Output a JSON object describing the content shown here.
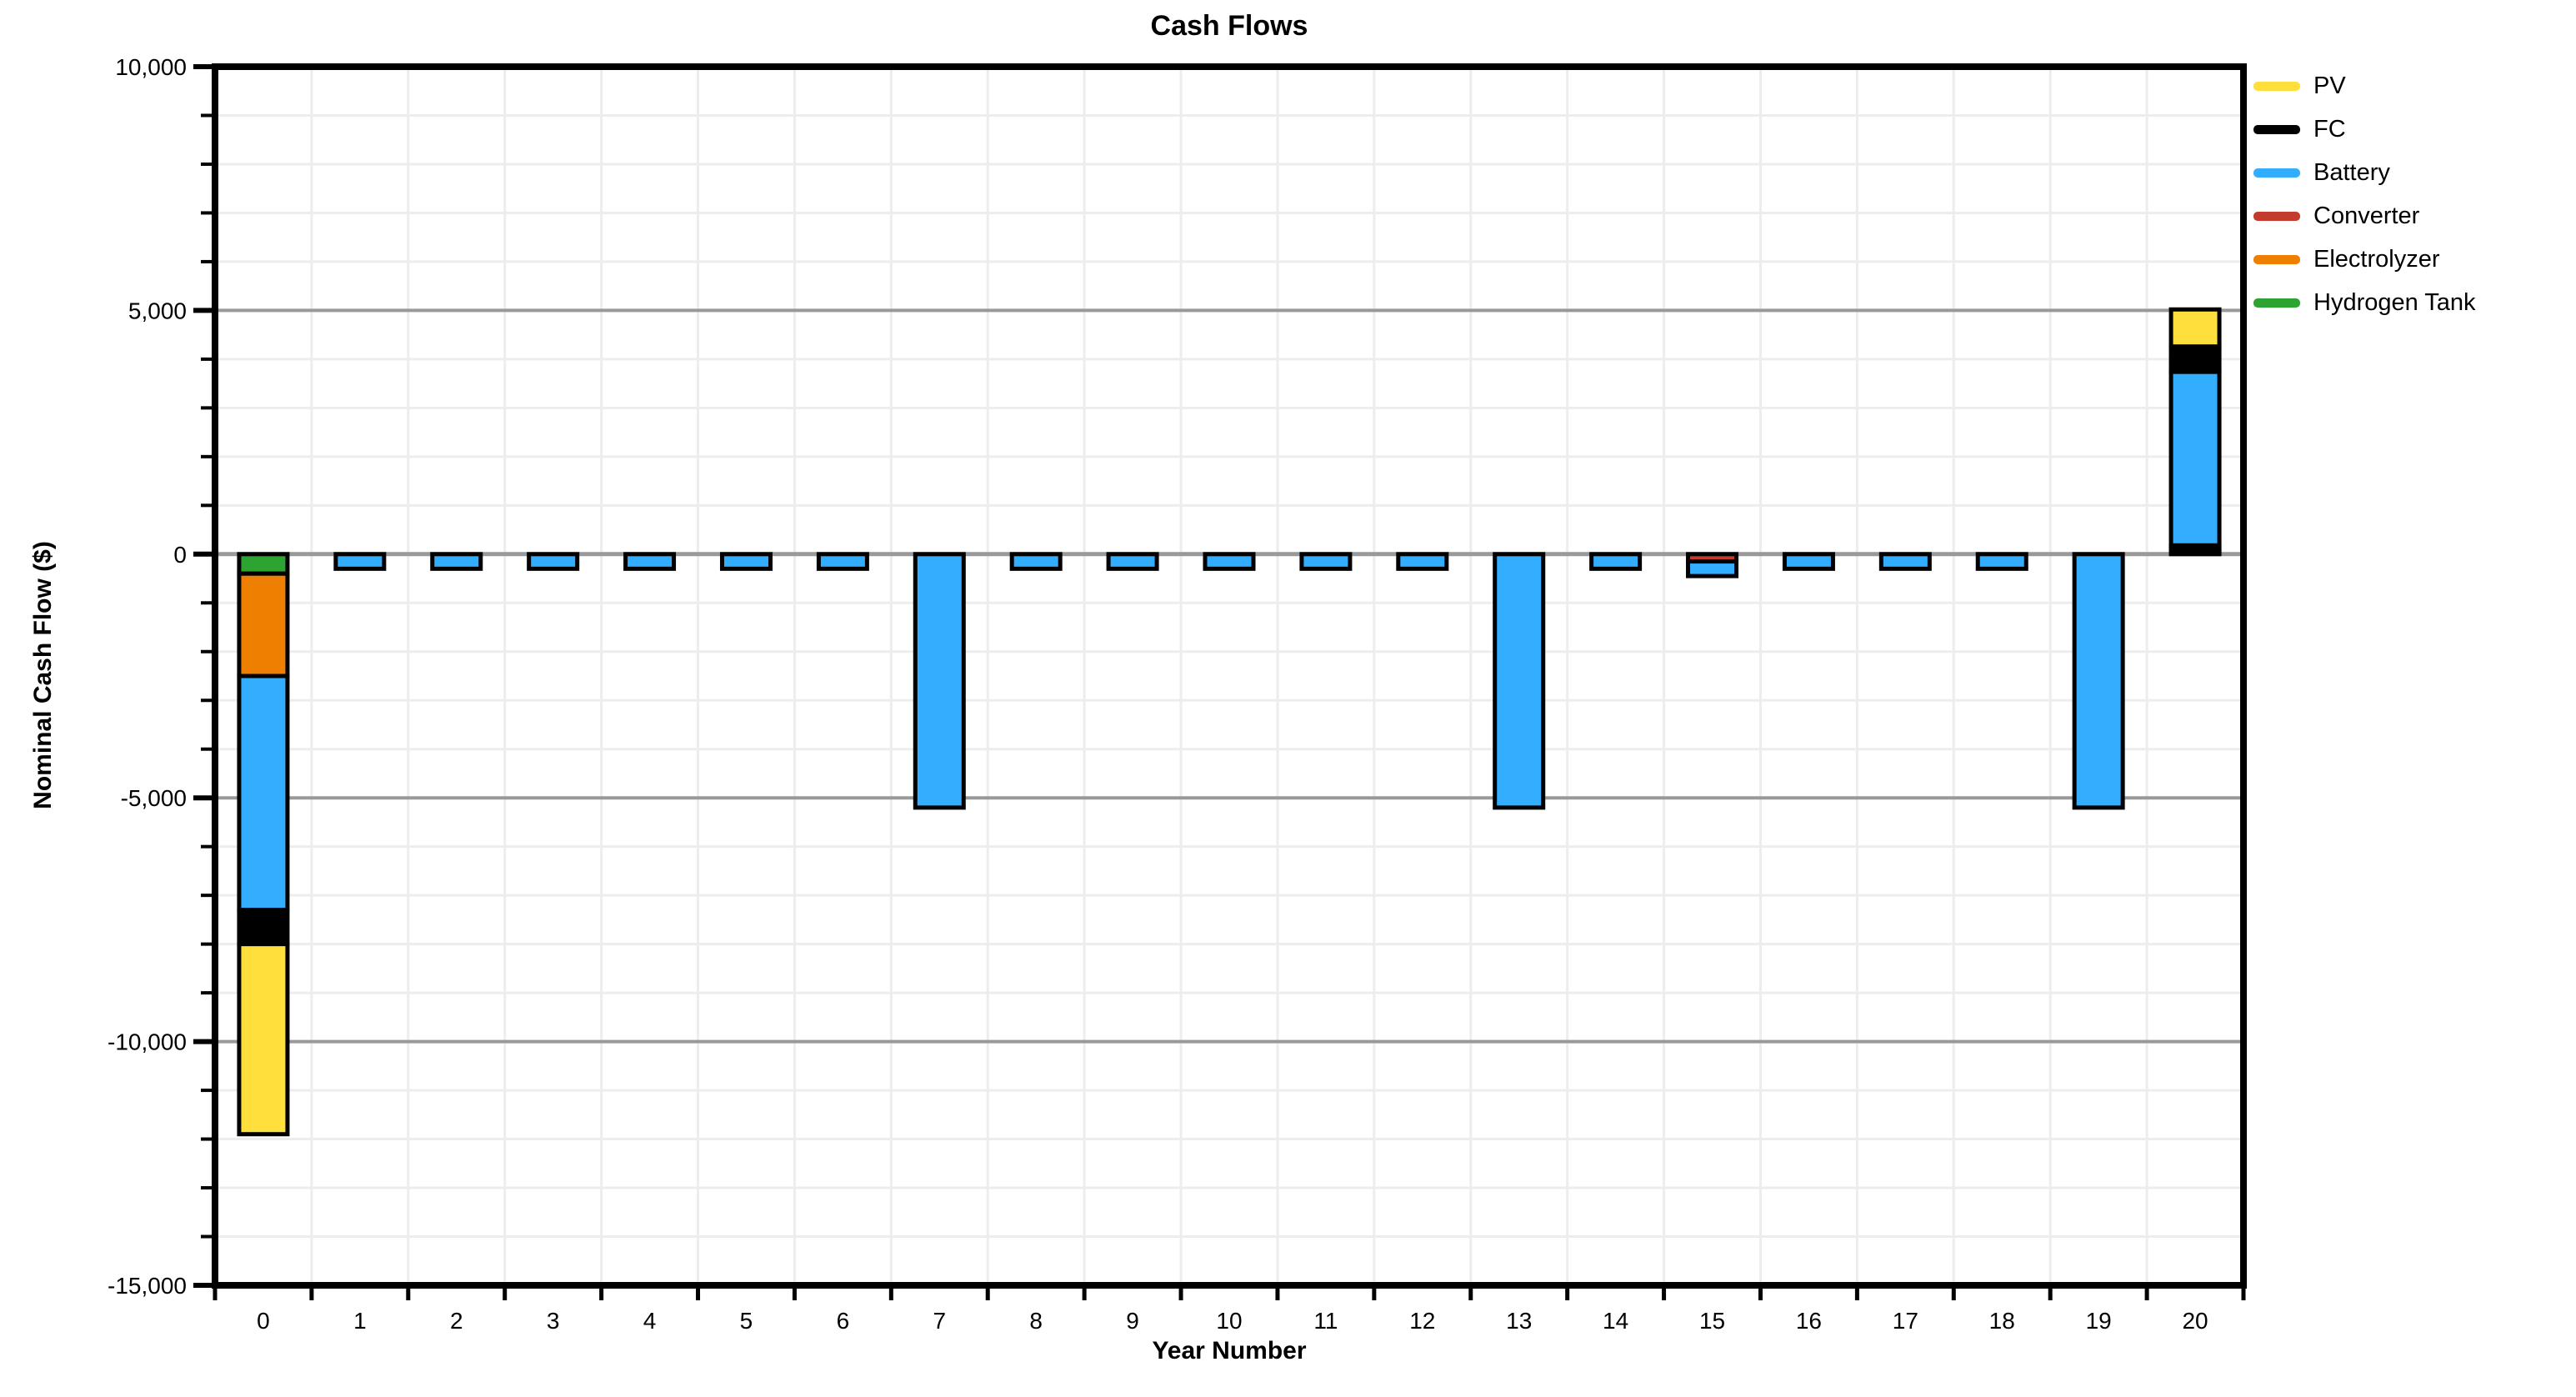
{
  "chart_data": {
    "type": "bar",
    "subtype": "stacked-bar",
    "title": "Cash Flows",
    "xlabel": "Year Number",
    "ylabel": "Nominal Cash Flow ($)",
    "ylim": [
      -15000,
      10000
    ],
    "ytick_major_step": 5000,
    "ytick_minor_step": 1000,
    "ytick_labels": [
      "10,000",
      "5,000",
      "0",
      "-5,000",
      "-10,000",
      "-15,000"
    ],
    "grid": "on",
    "legend_position": "outside-right",
    "stack_order": "reverse-legend-from-zero",
    "categories": [
      "0",
      "1",
      "2",
      "3",
      "4",
      "5",
      "6",
      "7",
      "8",
      "9",
      "10",
      "11",
      "12",
      "13",
      "14",
      "15",
      "16",
      "17",
      "18",
      "19",
      "20"
    ],
    "series": [
      {
        "name": "PV",
        "color": "#FFDF3B",
        "values": [
          -3900,
          0,
          0,
          0,
          0,
          0,
          0,
          0,
          0,
          0,
          0,
          0,
          0,
          0,
          0,
          0,
          0,
          0,
          0,
          0,
          760
        ]
      },
      {
        "name": "FC",
        "color": "#000000",
        "values": [
          -700,
          0,
          0,
          0,
          0,
          0,
          0,
          0,
          0,
          0,
          0,
          0,
          0,
          0,
          0,
          0,
          0,
          0,
          0,
          0,
          520
        ]
      },
      {
        "name": "Battery",
        "color": "#33AEFF",
        "values": [
          -4800,
          -300,
          -300,
          -300,
          -300,
          -300,
          -300,
          -5200,
          -300,
          -300,
          -300,
          -300,
          -300,
          -5200,
          -300,
          -300,
          -300,
          -300,
          -300,
          -5200,
          3560
        ]
      },
      {
        "name": "Converter",
        "color": "#C23B2C",
        "values": [
          0,
          0,
          0,
          0,
          0,
          0,
          0,
          0,
          0,
          0,
          0,
          0,
          0,
          0,
          0,
          -150,
          0,
          0,
          0,
          0,
          60
        ]
      },
      {
        "name": "Electrolyzer",
        "color": "#EE7F00",
        "values": [
          -2100,
          0,
          0,
          0,
          0,
          0,
          0,
          0,
          0,
          0,
          0,
          0,
          0,
          0,
          0,
          0,
          0,
          0,
          0,
          0,
          60
        ]
      },
      {
        "name": "Hydrogen Tank",
        "color": "#2DA431",
        "values": [
          -400,
          0,
          0,
          0,
          0,
          0,
          0,
          0,
          0,
          0,
          0,
          0,
          0,
          0,
          0,
          0,
          0,
          0,
          0,
          0,
          60
        ]
      }
    ],
    "colors": {
      "background": "#ffffff",
      "plot_background": "#ffffff",
      "grid_major": "#999999",
      "grid_minor": "#ededed",
      "axis_frame": "#000000",
      "bar_outline": "#000000",
      "text": "#000000"
    }
  }
}
